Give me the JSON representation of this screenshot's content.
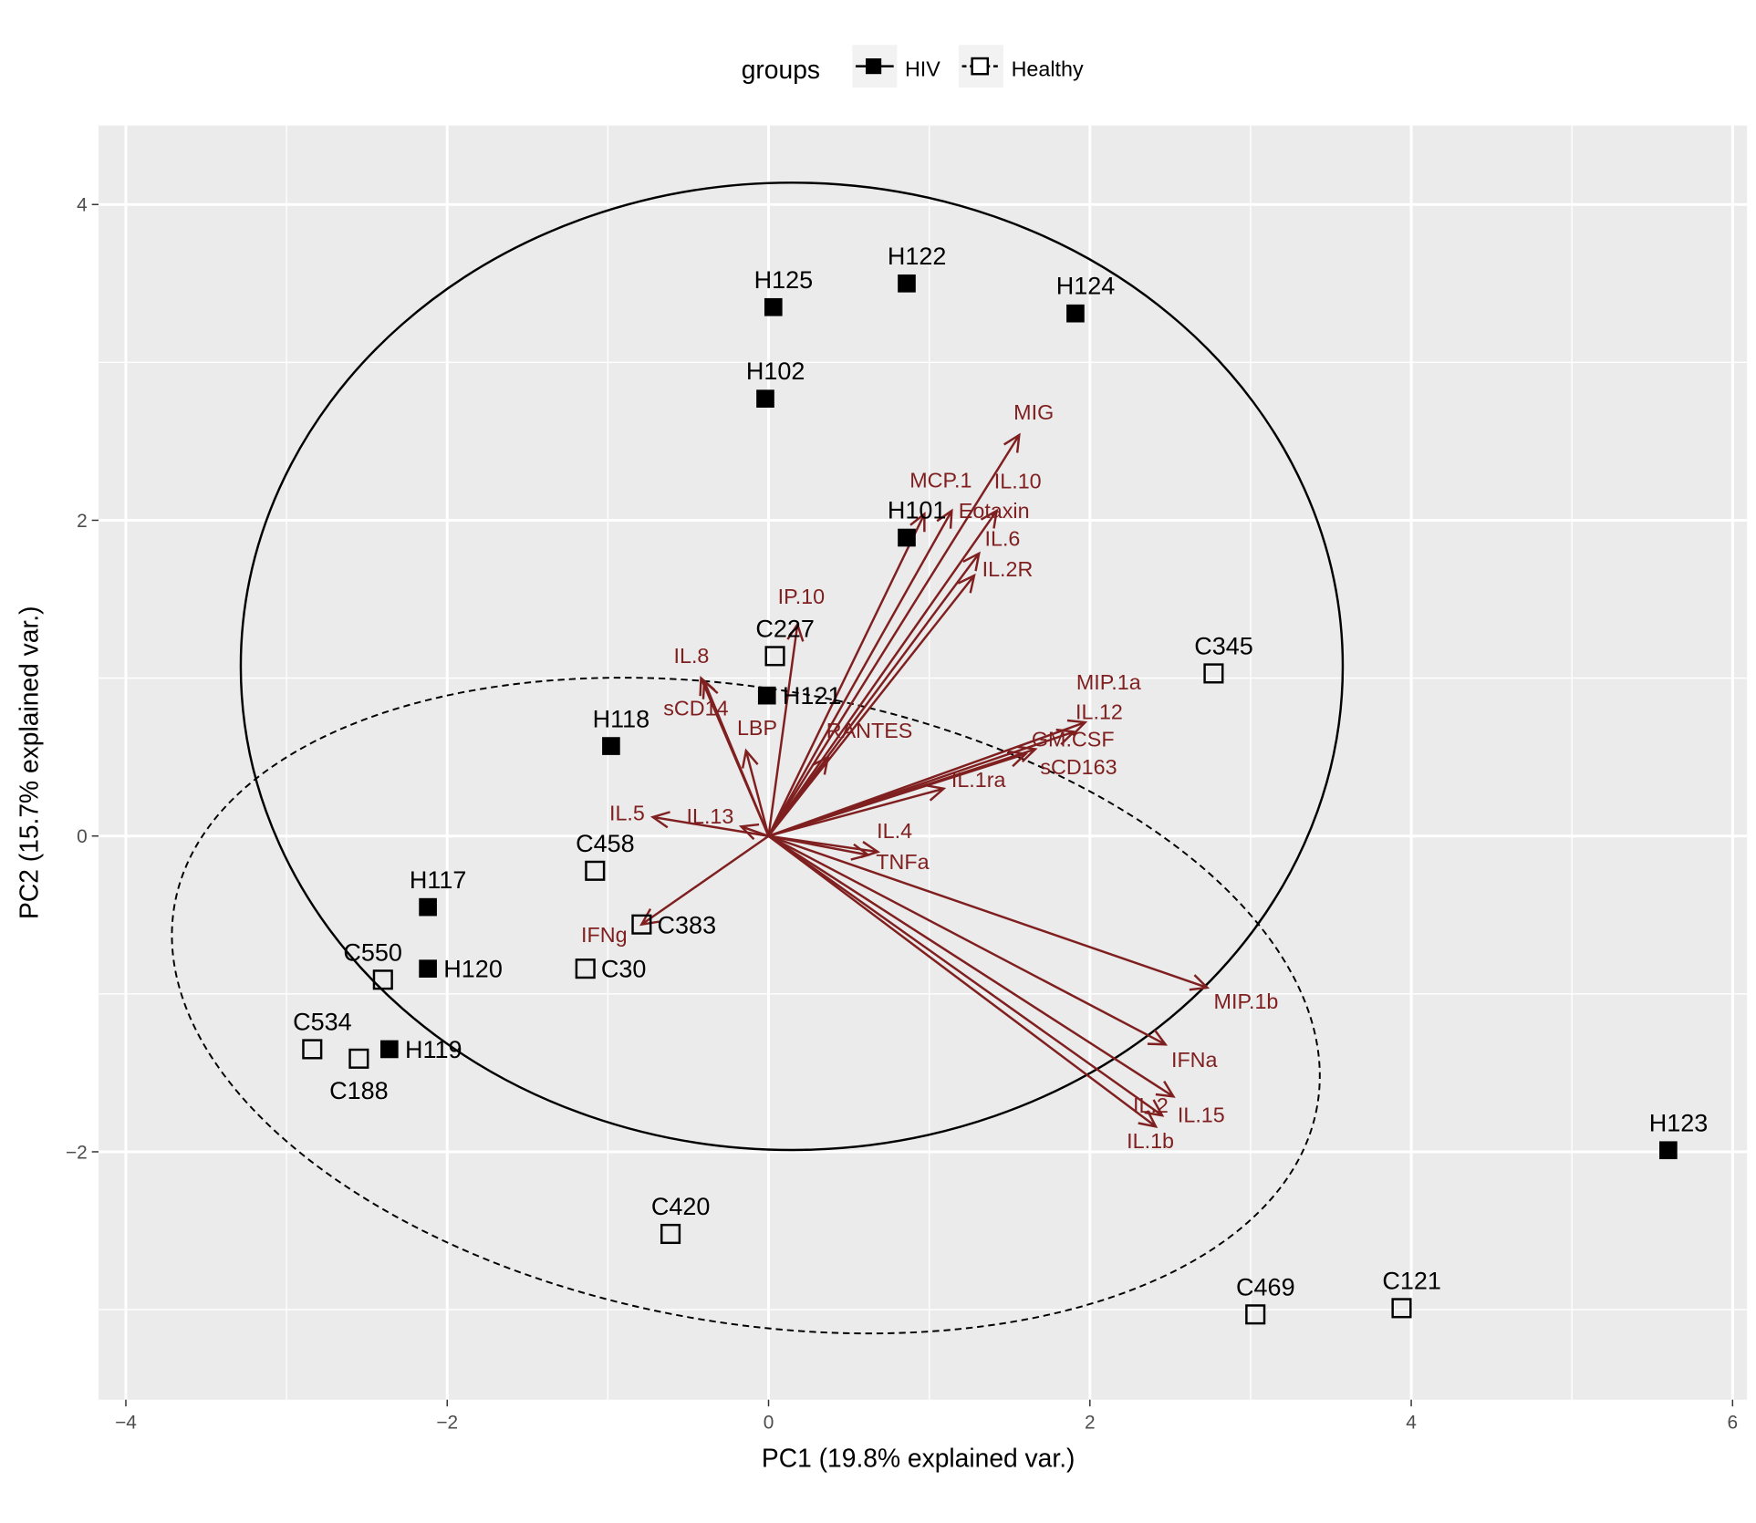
{
  "chart_data": {
    "type": "scatter",
    "subtype": "pca-biplot",
    "xlabel": "PC1 (19.8% explained var.)",
    "ylabel": "PC2 (15.7% explained var.)",
    "xlim": [
      -4.17,
      6.09
    ],
    "ylim": [
      -3.57,
      4.5
    ],
    "x_ticks": [
      -4,
      -2,
      0,
      2,
      4,
      6
    ],
    "y_ticks": [
      -2,
      0,
      2,
      4
    ],
    "grid": true,
    "legend": {
      "title": "groups",
      "position": "top",
      "entries": [
        "HIV",
        "Healthy"
      ]
    },
    "colors": {
      "panel": "#ebebeb",
      "grid": "#ffffff",
      "arrow": "#7f1f1f",
      "point": "#000000"
    },
    "points": [
      {
        "label": "H125",
        "group": "HIV",
        "x": 0.03,
        "y": 3.35
      },
      {
        "label": "H122",
        "group": "HIV",
        "x": 0.86,
        "y": 3.5
      },
      {
        "label": "H124",
        "group": "HIV",
        "x": 1.91,
        "y": 3.31
      },
      {
        "label": "H102",
        "group": "HIV",
        "x": -0.02,
        "y": 2.77
      },
      {
        "label": "H101",
        "group": "HIV",
        "x": 0.86,
        "y": 1.89
      },
      {
        "label": "C227",
        "group": "Healthy",
        "x": 0.04,
        "y": 1.14
      },
      {
        "label": "H121",
        "group": "HIV",
        "x": -0.01,
        "y": 0.89
      },
      {
        "label": "C345",
        "group": "Healthy",
        "x": 2.77,
        "y": 1.03
      },
      {
        "label": "H118",
        "group": "HIV",
        "x": -0.98,
        "y": 0.57
      },
      {
        "label": "C458",
        "group": "Healthy",
        "x": -1.08,
        "y": -0.22
      },
      {
        "label": "H117",
        "group": "HIV",
        "x": -2.12,
        "y": -0.45
      },
      {
        "label": "C383",
        "group": "Healthy",
        "x": -0.79,
        "y": -0.56
      },
      {
        "label": "H120",
        "group": "HIV",
        "x": -2.12,
        "y": -0.84
      },
      {
        "label": "C550",
        "group": "Healthy",
        "x": -2.4,
        "y": -0.91
      },
      {
        "label": "C30",
        "group": "Healthy",
        "x": -1.14,
        "y": -0.84
      },
      {
        "label": "C534",
        "group": "Healthy",
        "x": -2.84,
        "y": -1.35
      },
      {
        "label": "C188",
        "group": "Healthy",
        "x": -2.55,
        "y": -1.41
      },
      {
        "label": "H119",
        "group": "HIV",
        "x": -2.36,
        "y": -1.35
      },
      {
        "label": "C420",
        "group": "Healthy",
        "x": -0.61,
        "y": -2.52
      },
      {
        "label": "H123",
        "group": "HIV",
        "x": 5.6,
        "y": -1.99
      },
      {
        "label": "C469",
        "group": "Healthy",
        "x": 3.03,
        "y": -3.03
      },
      {
        "label": "C121",
        "group": "Healthy",
        "x": 3.94,
        "y": -2.99
      }
    ],
    "loadings": [
      {
        "name": "MCP.1",
        "x": 0.97,
        "y": 2.04
      },
      {
        "name": "Eotaxin",
        "x": 1.14,
        "y": 2.06
      },
      {
        "name": "MIG",
        "x": 1.56,
        "y": 2.54
      },
      {
        "name": "IL.10",
        "x": 1.42,
        "y": 2.06
      },
      {
        "name": "IL.6",
        "x": 1.31,
        "y": 1.79
      },
      {
        "name": "IL.2R",
        "x": 1.28,
        "y": 1.65
      },
      {
        "name": "IP.10",
        "x": 0.18,
        "y": 1.34
      },
      {
        "name": "RANTES",
        "x": 0.37,
        "y": 0.5
      },
      {
        "name": "IL.8",
        "x": -0.42,
        "y": 1.0
      },
      {
        "name": "sCD14",
        "x": -0.4,
        "y": 0.98
      },
      {
        "name": "LBP",
        "x": -0.14,
        "y": 0.54
      },
      {
        "name": "IL.5",
        "x": -0.72,
        "y": 0.12
      },
      {
        "name": "IL.13",
        "x": -0.17,
        "y": 0.06
      },
      {
        "name": "IL.1ra",
        "x": 1.09,
        "y": 0.3
      },
      {
        "name": "GM.CSF",
        "x": 1.6,
        "y": 0.52
      },
      {
        "name": "sCD163",
        "x": 1.66,
        "y": 0.55
      },
      {
        "name": "IL.12",
        "x": 1.9,
        "y": 0.66
      },
      {
        "name": "MIP.1a",
        "x": 1.97,
        "y": 0.72
      },
      {
        "name": "TNFa",
        "x": 0.62,
        "y": -0.12
      },
      {
        "name": "IL.4",
        "x": 0.68,
        "y": -0.1
      },
      {
        "name": "MIP.1b",
        "x": 2.73,
        "y": -0.96
      },
      {
        "name": "IFNa",
        "x": 2.47,
        "y": -1.32
      },
      {
        "name": "IL.15",
        "x": 2.52,
        "y": -1.65
      },
      {
        "name": "IL.1b",
        "x": 2.45,
        "y": -1.77
      },
      {
        "name": "IL.2",
        "x": 2.41,
        "y": -1.84
      },
      {
        "name": "IFNg",
        "x": -0.79,
        "y": -0.56
      }
    ],
    "ellipses": [
      {
        "group": "HIV",
        "style": "solid"
      },
      {
        "group": "Healthy",
        "style": "dashed"
      }
    ]
  }
}
